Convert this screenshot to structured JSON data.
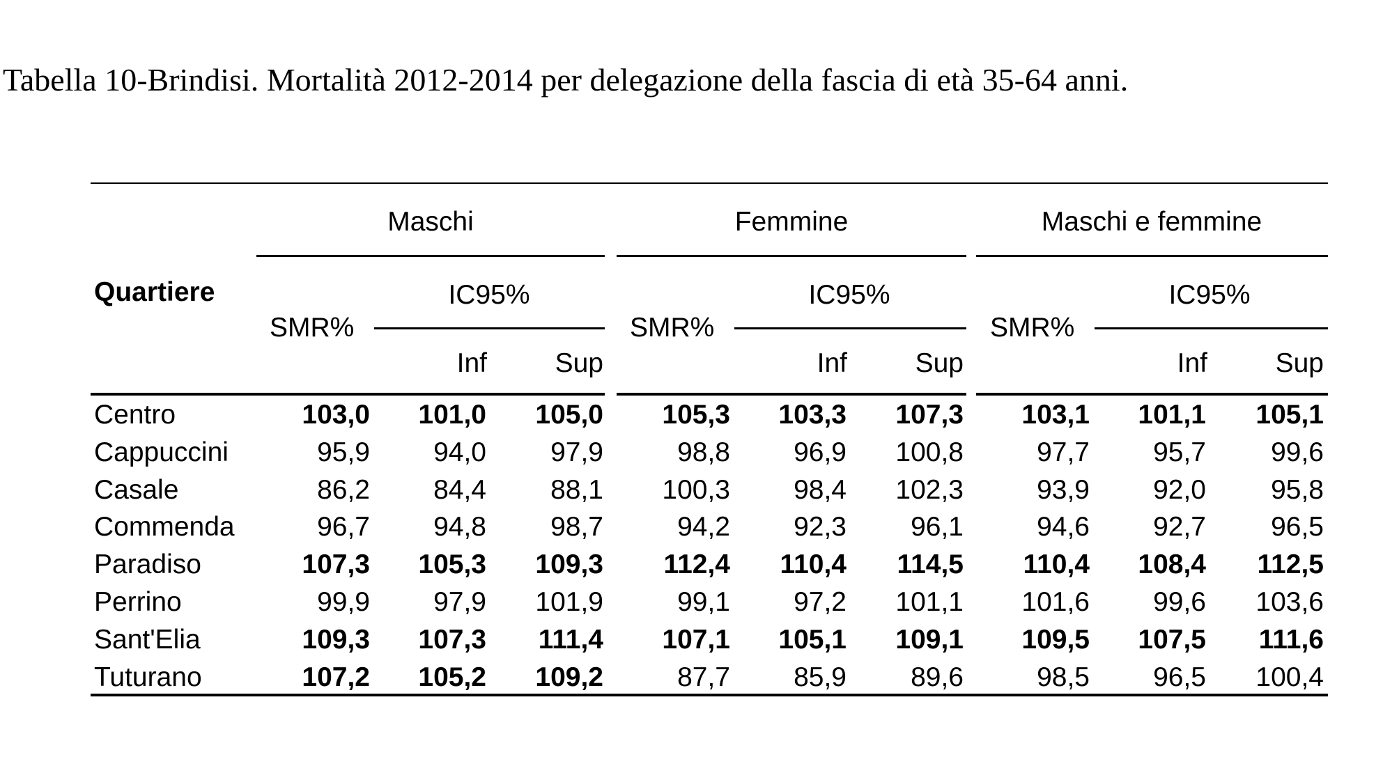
{
  "caption": "Tabella 10-Brindisi. Mortalità 2012-2014 per delegazione della fascia di età 35-64 anni.",
  "header": {
    "quartiere": "Quartiere",
    "groups": [
      "Maschi",
      "Femmine",
      "Maschi e femmine"
    ],
    "smr": "SMR%",
    "ic": "IC95%",
    "inf": "Inf",
    "sup": "Sup"
  },
  "rows": [
    {
      "name": "Centro",
      "bold": true,
      "values": [
        "103,0",
        "101,0",
        "105,0",
        "105,3",
        "103,3",
        "107,3",
        "103,1",
        "101,1",
        "105,1"
      ]
    },
    {
      "name": "Cappuccini",
      "bold": false,
      "values": [
        "95,9",
        "94,0",
        "97,9",
        "98,8",
        "96,9",
        "100,8",
        "97,7",
        "95,7",
        "99,6"
      ]
    },
    {
      "name": "Casale",
      "bold": false,
      "values": [
        "86,2",
        "84,4",
        "88,1",
        "100,3",
        "98,4",
        "102,3",
        "93,9",
        "92,0",
        "95,8"
      ]
    },
    {
      "name": "Commenda",
      "bold": false,
      "values": [
        "96,7",
        "94,8",
        "98,7",
        "94,2",
        "92,3",
        "96,1",
        "94,6",
        "92,7",
        "96,5"
      ]
    },
    {
      "name": "Paradiso",
      "bold": true,
      "values": [
        "107,3",
        "105,3",
        "109,3",
        "112,4",
        "110,4",
        "114,5",
        "110,4",
        "108,4",
        "112,5"
      ]
    },
    {
      "name": "Perrino",
      "bold": false,
      "values": [
        "99,9",
        "97,9",
        "101,9",
        "99,1",
        "97,2",
        "101,1",
        "101,6",
        "99,6",
        "103,6"
      ]
    },
    {
      "name": "Sant'Elia",
      "bold": true,
      "values": [
        "109,3",
        "107,3",
        "111,4",
        "107,1",
        "105,1",
        "109,1",
        "109,5",
        "107,5",
        "111,6"
      ]
    },
    {
      "name": "Tuturano",
      "bold": false,
      "boldGroups": [
        0
      ],
      "values": [
        "107,2",
        "105,2",
        "109,2",
        "87,7",
        "85,9",
        "89,6",
        "98,5",
        "96,5",
        "100,4"
      ]
    }
  ]
}
